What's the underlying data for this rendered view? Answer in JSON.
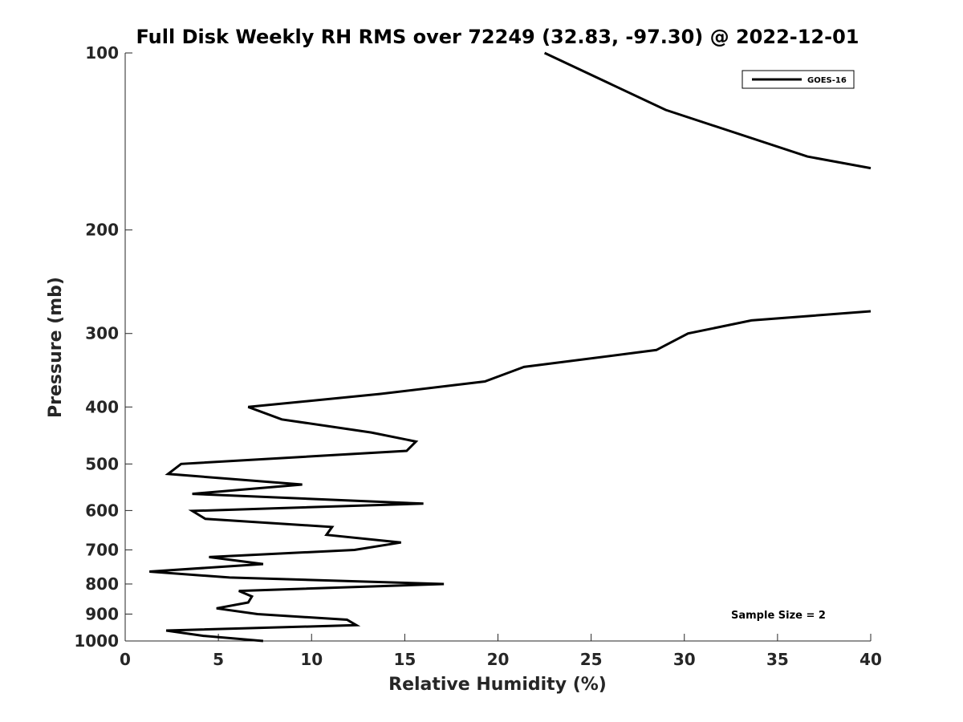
{
  "chart_data": {
    "type": "line",
    "title": "Full Disk Weekly RH RMS over 72249 (32.83, -97.30) @ 2022-12-01",
    "xlabel": "Relative Humidity (%)",
    "ylabel": "Pressure (mb)",
    "xlim": [
      0,
      40
    ],
    "ylim": [
      1000,
      100
    ],
    "y_scale": "log",
    "x_ticks": [
      0,
      5,
      10,
      15,
      20,
      25,
      30,
      35,
      40
    ],
    "x_tick_labels": [
      "0",
      "5",
      "10",
      "15",
      "20",
      "25",
      "30",
      "35",
      "40"
    ],
    "y_ticks": [
      100,
      200,
      300,
      400,
      500,
      600,
      700,
      800,
      900,
      1000
    ],
    "y_tick_labels": [
      "100",
      "200",
      "300",
      "400",
      "500",
      "600",
      "700",
      "800",
      "900",
      "1000"
    ],
    "grid": false,
    "legend_position": "top-right",
    "series": [
      {
        "name": "GOES-16",
        "color": "#000000",
        "points": [
          [
            22.5,
            100
          ],
          [
            29.0,
            125
          ],
          [
            36.6,
            150
          ],
          [
            40.0,
            157
          ]
        ]
      },
      {
        "name": "GOES-16",
        "color": "#000000",
        "points": [
          [
            40.0,
            275
          ],
          [
            33.6,
            285
          ],
          [
            30.2,
            300
          ],
          [
            28.5,
            320
          ],
          [
            21.4,
            342
          ],
          [
            19.3,
            362
          ],
          [
            13.7,
            380
          ],
          [
            6.6,
            400
          ],
          [
            8.4,
            420
          ],
          [
            13.2,
            442
          ],
          [
            15.6,
            458
          ],
          [
            15.1,
            475
          ],
          [
            3.0,
            500
          ],
          [
            2.3,
            520
          ],
          [
            9.5,
            542
          ],
          [
            3.6,
            562
          ],
          [
            16.0,
            584
          ],
          [
            3.6,
            601
          ],
          [
            4.3,
            620
          ],
          [
            11.1,
            640
          ],
          [
            10.8,
            660
          ],
          [
            14.8,
            680
          ],
          [
            12.3,
            700
          ],
          [
            4.5,
            720
          ],
          [
            7.4,
            740
          ],
          [
            1.3,
            762
          ],
          [
            5.6,
            780
          ],
          [
            17.1,
            800
          ],
          [
            6.1,
            822
          ],
          [
            6.8,
            840
          ],
          [
            6.6,
            860
          ],
          [
            4.9,
            880
          ],
          [
            7.1,
            900
          ],
          [
            11.9,
            920
          ],
          [
            12.4,
            940
          ],
          [
            2.2,
            960
          ],
          [
            4.2,
            980
          ],
          [
            7.4,
            1000
          ]
        ]
      }
    ],
    "legend": [
      "GOES-16"
    ],
    "annotations": [
      "Sample Size = 2"
    ]
  }
}
